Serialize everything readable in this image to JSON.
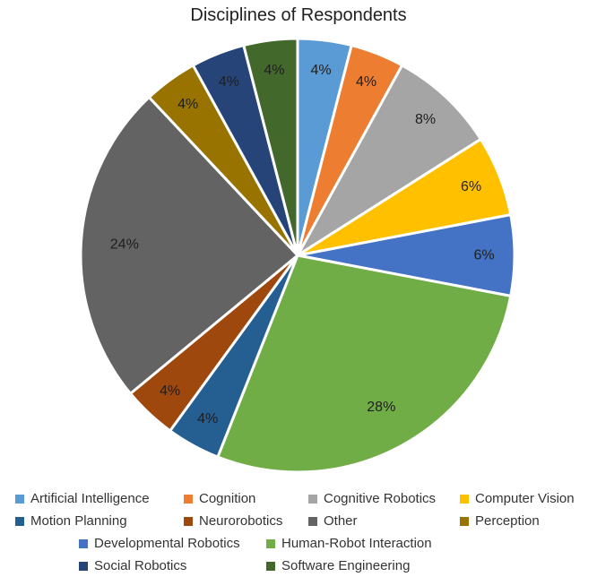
{
  "chart_data": {
    "type": "pie",
    "title": "Disciplines of Respondents",
    "slices": [
      {
        "name": "Artificial Intelligence",
        "value": 4,
        "label": "4%",
        "color": "#5b9bd5"
      },
      {
        "name": "Cognition",
        "value": 4,
        "label": "4%",
        "color": "#ed7d31"
      },
      {
        "name": "Cognitive Robotics",
        "value": 8,
        "label": "8%",
        "color": "#a5a5a5"
      },
      {
        "name": "Computer Vision",
        "value": 6,
        "label": "6%",
        "color": "#ffc000"
      },
      {
        "name": "Developmental Robotics",
        "value": 6,
        "label": "6%",
        "color": "#4472c4"
      },
      {
        "name": "Human-Robot Interaction",
        "value": 28,
        "label": "28%",
        "color": "#70ad47"
      },
      {
        "name": "Motion Planning",
        "value": 4,
        "label": "4%",
        "color": "#255e91"
      },
      {
        "name": "Neurorobotics",
        "value": 4,
        "label": "4%",
        "color": "#9e480e"
      },
      {
        "name": "Other",
        "value": 24,
        "label": "24%",
        "color": "#636363"
      },
      {
        "name": "Perception",
        "value": 4,
        "label": "4%",
        "color": "#997300"
      },
      {
        "name": "Social Robotics",
        "value": 4,
        "label": "4%",
        "color": "#264478"
      },
      {
        "name": "Software Engineering",
        "value": 4,
        "label": "4%",
        "color": "#43682b"
      }
    ],
    "legend_placement": "bottom",
    "legend_rows": [
      [
        "Artificial Intelligence",
        "Cognition",
        "Cognitive Robotics",
        "Computer Vision"
      ],
      [
        "Motion Planning",
        "Neurorobotics",
        "Other",
        "Perception"
      ],
      [
        "Developmental Robotics",
        "Human-Robot Interaction"
      ],
      [
        "Social Robotics",
        "Software Engineering"
      ]
    ]
  }
}
